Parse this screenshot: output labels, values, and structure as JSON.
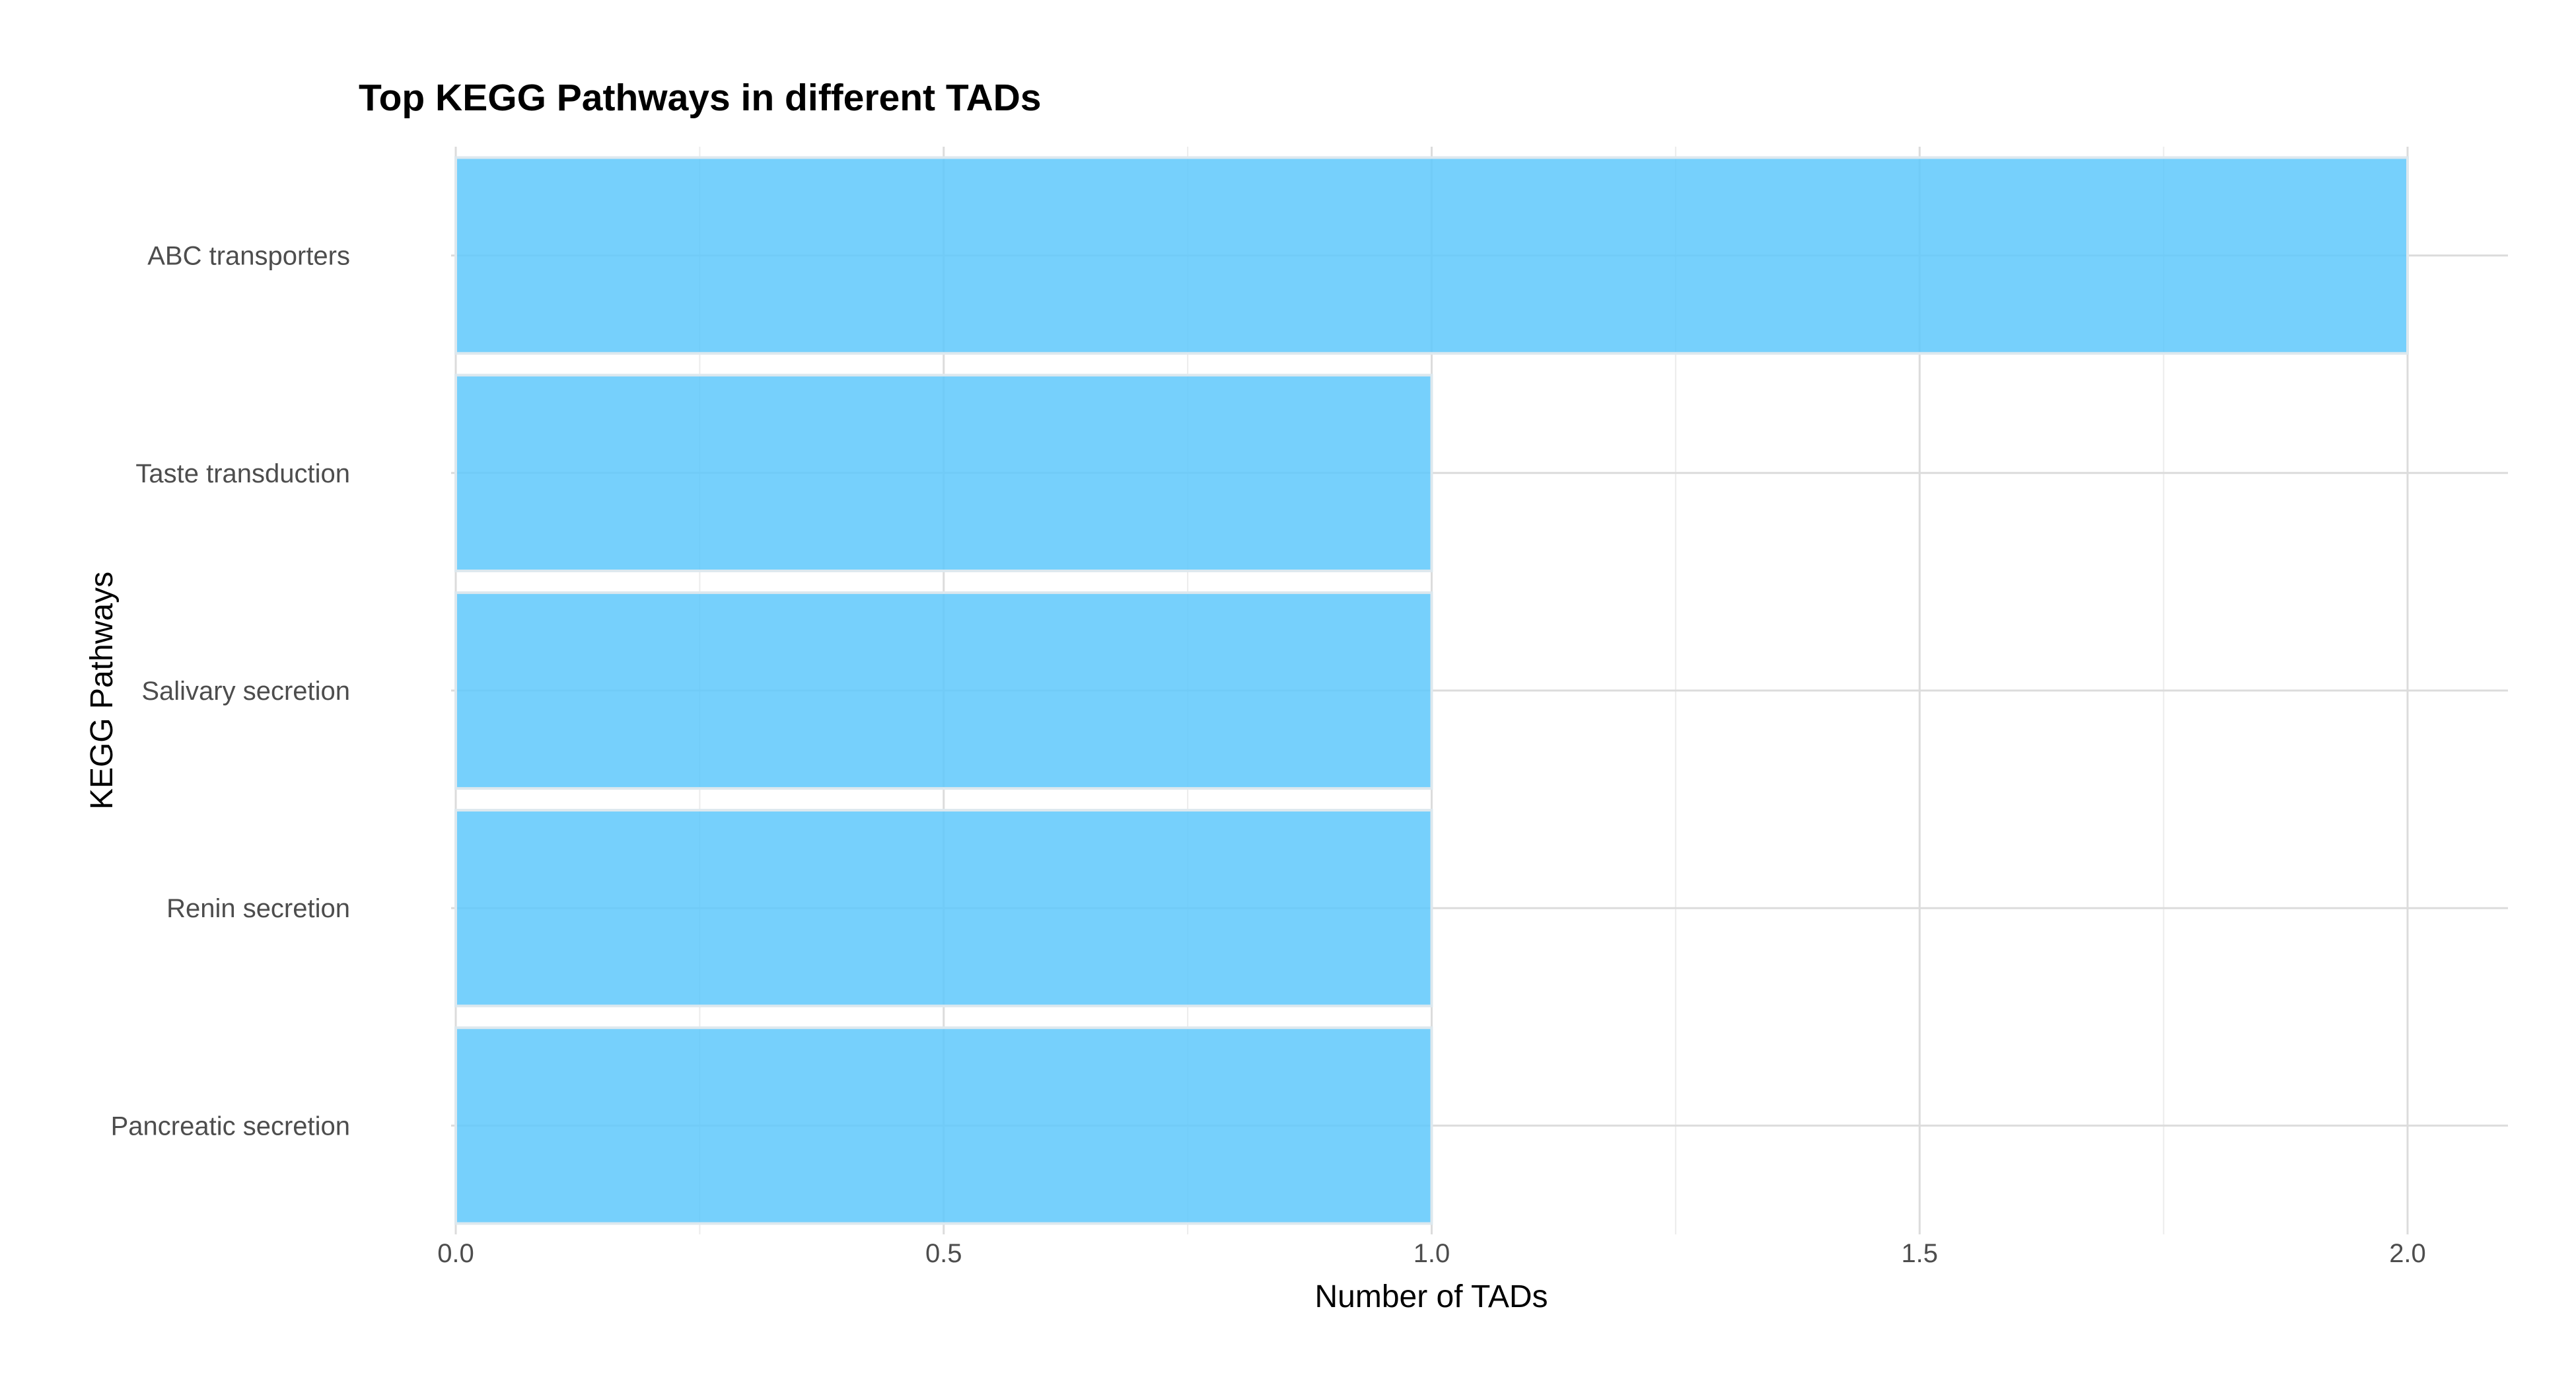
{
  "chart_data": {
    "type": "bar",
    "orientation": "horizontal",
    "title": "Top KEGG Pathways in different TADs",
    "xlabel": "Number of TADs",
    "ylabel": "KEGG Pathways",
    "categories": [
      "ABC transporters",
      "Taste transduction",
      "Salivary secretion",
      "Renin secretion",
      "Pancreatic secretion"
    ],
    "values": [
      2,
      1,
      1,
      1,
      1
    ],
    "xlim": [
      0,
      2.1
    ],
    "x_ticks": [
      "0.0",
      "0.5",
      "1.0",
      "1.5",
      "2.0"
    ],
    "grid": true,
    "legend": false,
    "colors": {
      "bar_fill": "#5ec8fb",
      "bar_stroke": "#dde8ee",
      "grid_major": "#dcdcdc",
      "grid_minor": "#ececec"
    }
  }
}
